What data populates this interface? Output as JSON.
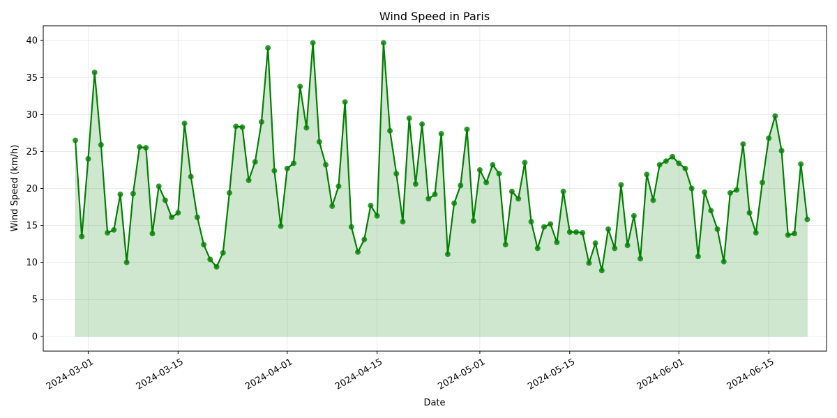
{
  "chart_data": {
    "type": "area",
    "title": "Wind Speed in Paris",
    "xlabel": "Date",
    "ylabel": "Wind Speed (km/h)",
    "start_date": "2024-02-28",
    "x_range": [
      "2024-02-23",
      "2024-06-24"
    ],
    "ylim": [
      -2,
      42
    ],
    "y_ticks": [
      0,
      5,
      10,
      15,
      20,
      25,
      30,
      35,
      40
    ],
    "x_ticks": [
      "2024-03-01",
      "2024-03-15",
      "2024-04-01",
      "2024-04-15",
      "2024-05-01",
      "2024-05-15",
      "2024-06-01",
      "2024-06-15"
    ],
    "grid": true,
    "line_color": "#008000",
    "fill_color": "#008000",
    "series": [
      {
        "name": "Wind Speed",
        "values": [
          26.5,
          13.5,
          24.0,
          35.7,
          25.9,
          14.0,
          14.4,
          19.2,
          10.0,
          19.3,
          25.6,
          25.5,
          13.9,
          20.3,
          18.4,
          16.1,
          16.7,
          28.8,
          21.6,
          16.1,
          12.4,
          10.4,
          9.4,
          11.3,
          19.4,
          28.4,
          28.3,
          21.1,
          23.6,
          29.0,
          39.0,
          22.4,
          14.9,
          22.7,
          23.4,
          33.8,
          28.2,
          39.7,
          26.3,
          23.2,
          17.6,
          20.3,
          31.7,
          14.8,
          11.4,
          13.1,
          17.7,
          16.3,
          39.7,
          27.8,
          22.0,
          15.5,
          29.5,
          20.6,
          28.7,
          18.6,
          19.2,
          27.4,
          11.1,
          18.0,
          20.4,
          28.0,
          15.6,
          22.5,
          20.8,
          23.2,
          22.0,
          12.4,
          19.6,
          18.6,
          23.5,
          15.5,
          11.9,
          14.8,
          15.2,
          12.7,
          19.6,
          14.1,
          14.1,
          14.0,
          9.9,
          12.6,
          8.9,
          14.5,
          11.9,
          20.5,
          12.3,
          16.3,
          10.5,
          21.9,
          18.4,
          23.2,
          23.7,
          24.3,
          23.4,
          22.7,
          20.0,
          10.8,
          19.5,
          17.0,
          14.5,
          10.1,
          19.4,
          19.8,
          26.0,
          16.7,
          14.0,
          20.8,
          26.8,
          29.8,
          25.1,
          13.7,
          13.9,
          23.3,
          15.8
        ]
      }
    ]
  }
}
